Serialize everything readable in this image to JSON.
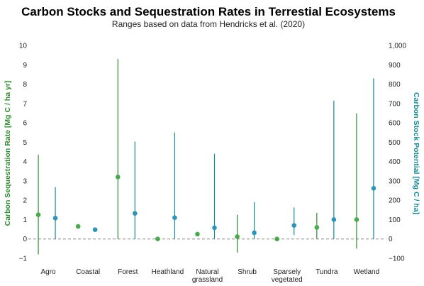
{
  "chart_data": {
    "type": "scatter",
    "title": "Carbon Stocks and Sequestration Rates in Terrestial Ecosystems",
    "subtitle": "Ranges based on data from Hendricks et al. (2020)",
    "ylabel_left": "Carbon Sequestration Rate [Mg C / ha yr]",
    "ylabel_right": "Carbon Stock Potential [Mg C / ha]",
    "ylim_left": [
      -1,
      10
    ],
    "ylim_right": [
      -100,
      1000
    ],
    "yticks_left": [
      "−1",
      "0",
      "1",
      "2",
      "3",
      "4",
      "5",
      "6",
      "7",
      "8",
      "9",
      "10"
    ],
    "yticks_right": [
      "−100",
      "0",
      "100",
      "200",
      "300",
      "400",
      "500",
      "600",
      "700",
      "800",
      "900",
      "1,000"
    ],
    "categories": [
      [
        "Agro"
      ],
      [
        "Coastal"
      ],
      [
        "Forest"
      ],
      [
        "Heathland"
      ],
      [
        "Natural",
        "grassland"
      ],
      [
        "Shrub"
      ],
      [
        "Sparsely",
        "vegetated"
      ],
      [
        "Tundra"
      ],
      [
        "Wetland"
      ]
    ],
    "series": [
      {
        "name": "Carbon Sequestration Rate",
        "axis": "left",
        "color": "#2e8b2e",
        "marker_color": "#4aa84f",
        "points": [
          1.25,
          0.65,
          3.2,
          0.0,
          0.25,
          0.12,
          0.0,
          0.6,
          1.0
        ],
        "low": [
          -0.8,
          null,
          0.0,
          null,
          null,
          -0.7,
          null,
          0.0,
          -0.5
        ],
        "high": [
          4.35,
          null,
          9.3,
          null,
          null,
          1.25,
          null,
          1.35,
          6.5
        ]
      },
      {
        "name": "Carbon Stock Potential",
        "axis": "right",
        "color": "#148a96",
        "marker_color": "#2e94b8",
        "points": [
          108,
          48,
          132,
          110,
          58,
          32,
          70,
          100,
          262
        ],
        "low": [
          0,
          null,
          0,
          0,
          0,
          0,
          20,
          0,
          0
        ],
        "high": [
          268,
          null,
          503,
          550,
          440,
          190,
          163,
          715,
          830
        ]
      }
    ]
  }
}
